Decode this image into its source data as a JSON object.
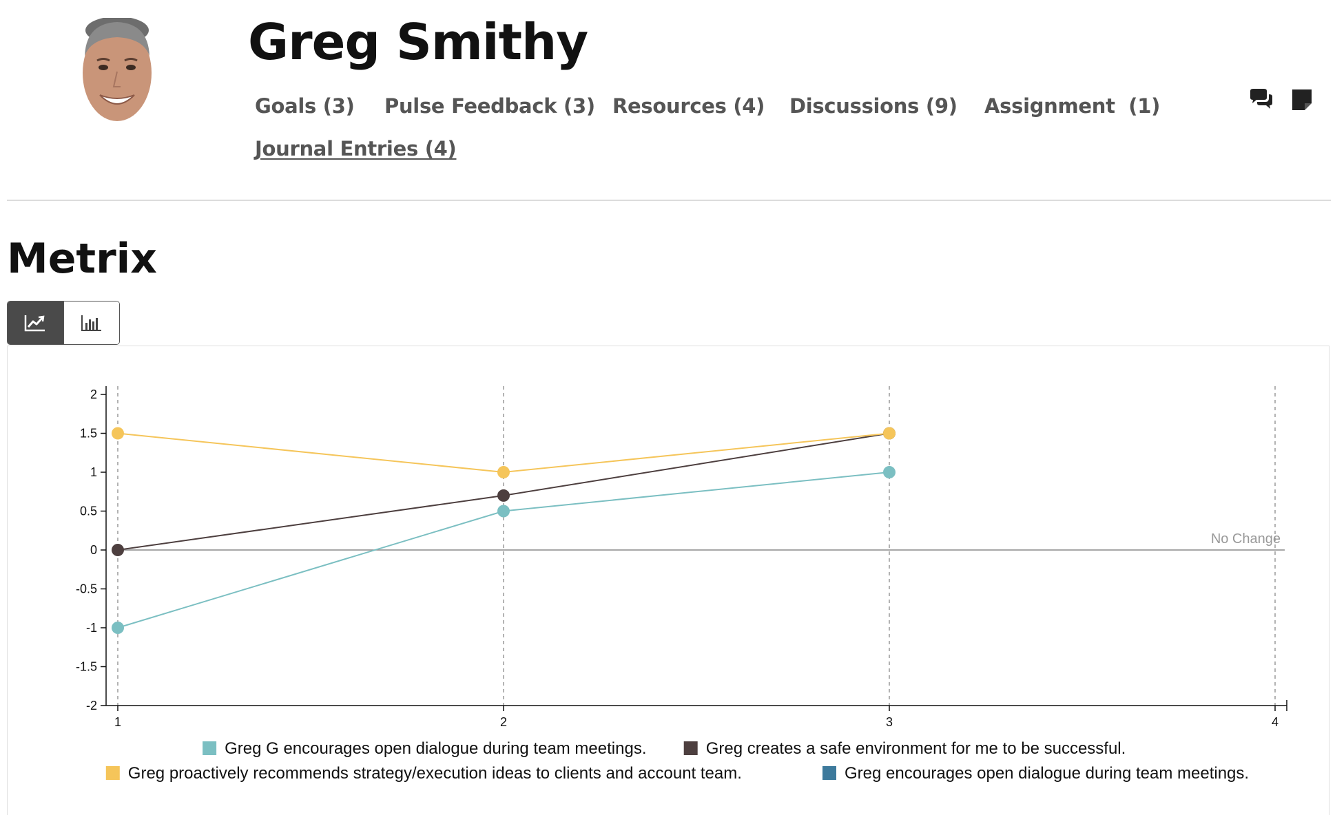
{
  "profile": {
    "name": "Greg Smithy"
  },
  "nav": {
    "items": [
      {
        "label": "Goals (3)"
      },
      {
        "label": "Pulse Feedback (3)"
      },
      {
        "label": "Resources (4)"
      },
      {
        "label": "Discussions (9)"
      },
      {
        "label": "Assignment  (1)"
      },
      {
        "label": "Journal Entries (4)"
      }
    ],
    "active_index": 5
  },
  "header_icons": [
    "chat-bubbles-icon",
    "sticky-note-icon"
  ],
  "section": {
    "title": "Metrix"
  },
  "view_toggle": {
    "options": [
      {
        "icon": "line-chart-icon",
        "active": true
      },
      {
        "icon": "bar-chart-icon",
        "active": false
      }
    ]
  },
  "chart_data": {
    "type": "line",
    "title": "",
    "xlabel": "",
    "ylabel": "",
    "x_ticks": [
      1,
      2,
      3,
      4
    ],
    "y_ticks": [
      2,
      1.5,
      1,
      0.5,
      0,
      -0.5,
      -1,
      -1.5,
      -2
    ],
    "xlim": [
      1,
      4
    ],
    "ylim": [
      -2,
      2
    ],
    "vertical_grid": "dashed",
    "reference_line": {
      "y": 0,
      "label": "No Change"
    },
    "legend_position": "bottom",
    "series": [
      {
        "name": "Greg G encourages open dialogue during team meetings.",
        "color": "#7bbfc2",
        "points": [
          [
            1,
            -1
          ],
          [
            2,
            0.5
          ],
          [
            3,
            1
          ]
        ]
      },
      {
        "name": "Greg creates a safe environment for me to be successful.",
        "color": "#4d3f3f",
        "points": [
          [
            1,
            0
          ],
          [
            2,
            0.7
          ],
          [
            3,
            1.5
          ]
        ]
      },
      {
        "name": "Greg proactively recommends strategy/execution ideas to clients and account team.",
        "color": "#f5c55a",
        "points": [
          [
            1,
            1.5
          ],
          [
            2,
            1
          ],
          [
            3,
            1.5
          ]
        ]
      },
      {
        "name": "Greg encourages open dialogue during team meetings.",
        "color": "#3d7a9c",
        "points": []
      }
    ]
  }
}
